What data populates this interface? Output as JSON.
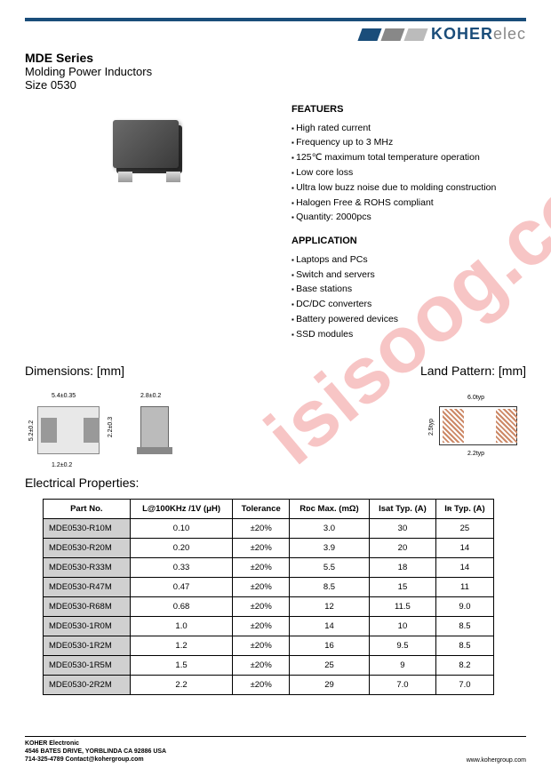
{
  "logo": {
    "brand": "KOHER",
    "suffix": "elec",
    "bar_colors": [
      "#1a4d7a",
      "#888888",
      "#bbbbbb"
    ]
  },
  "header": {
    "series": "MDE Series",
    "product": "Molding Power Inductors",
    "size": "Size 0530"
  },
  "features": {
    "title": "FEATUERS",
    "items": [
      "High rated current",
      "Frequency up to 3 MHz",
      "125℃ maximum total temperature operation",
      "Low core loss",
      "Ultra low buzz noise due to molding construction",
      "Halogen Free & ROHS compliant",
      "Quantity: 2000pcs"
    ]
  },
  "application": {
    "title": "APPLICATION",
    "items": [
      "Laptops and PCs",
      "Switch and servers",
      "Base stations",
      "DC/DC converters",
      "Battery powered devices",
      "SSD modules"
    ]
  },
  "dimensions": {
    "title": "Dimensions: [mm]",
    "land_title": "Land Pattern: [mm]",
    "top": {
      "w": "5.4±0.35",
      "h": "5.2±0.2",
      "pad_h": "2.2±0.3",
      "pad_w": "1.2±0.2"
    },
    "side": {
      "t": "2.8±0.2"
    },
    "land": {
      "w": "6.0typ",
      "h": "2.5typ",
      "gap": "2.2typ"
    }
  },
  "table": {
    "title": "Electrical Properties:",
    "columns": [
      "Part No.",
      "L@100KHz /1V (μH)",
      "Tolerance",
      "Rᴅᴄ Max. (mΩ)",
      "Isat Typ. (A)",
      "Iʀ Typ. (A)"
    ],
    "rows": [
      [
        "MDE0530-R10M",
        "0.10",
        "±20%",
        "3.0",
        "30",
        "25"
      ],
      [
        "MDE0530-R20M",
        "0.20",
        "±20%",
        "3.9",
        "20",
        "14"
      ],
      [
        "MDE0530-R33M",
        "0.33",
        "±20%",
        "5.5",
        "18",
        "14"
      ],
      [
        "MDE0530-R47M",
        "0.47",
        "±20%",
        "8.5",
        "15",
        "11"
      ],
      [
        "MDE0530-R68M",
        "0.68",
        "±20%",
        "12",
        "11.5",
        "9.0"
      ],
      [
        "MDE0530-1R0M",
        "1.0",
        "±20%",
        "14",
        "10",
        "8.5"
      ],
      [
        "MDE0530-1R2M",
        "1.2",
        "±20%",
        "16",
        "9.5",
        "8.5"
      ],
      [
        "MDE0530-1R5M",
        "1.5",
        "±20%",
        "25",
        "9",
        "8.2"
      ],
      [
        "MDE0530-2R2M",
        "2.2",
        "±20%",
        "29",
        "7.0",
        "7.0"
      ]
    ]
  },
  "footer": {
    "company": "KOHER Electronic",
    "address": "4546 BATES DRIVE, YORBLINDA CA 92886 USA",
    "contact": "714-325-4789  Contact@kohergroup.com",
    "url": "www.kohergroup.com"
  },
  "watermark": {
    "text": "isisoog.com",
    "color": "#e75a5a",
    "opacity": 0.45
  }
}
